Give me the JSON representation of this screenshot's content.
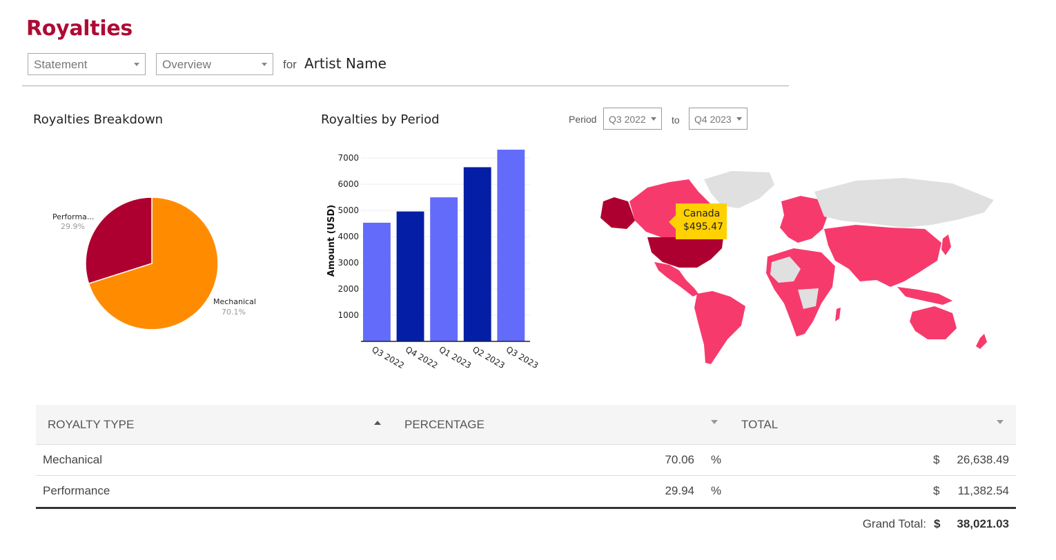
{
  "header": {
    "title": "Royalties",
    "statement_select": "Statement",
    "view_select": "Overview",
    "for_label": "for",
    "artist_name": "Artist Name"
  },
  "breakdown": {
    "title": "Royalties Breakdown",
    "slices": [
      {
        "label": "Mechanical",
        "pct_label": "70.1%",
        "value": 70.1,
        "color": "#ff8c00"
      },
      {
        "label": "Performa...",
        "pct_label": "29.9%",
        "value": 29.9,
        "color": "#ae0030"
      }
    ]
  },
  "period_chart": {
    "title": "Royalties by Period"
  },
  "period_filter": {
    "label": "Period",
    "from": "Q3 2022",
    "to_label": "to",
    "to": "Q4 2023"
  },
  "chart_data": [
    {
      "type": "pie",
      "title": "Royalties Breakdown",
      "categories": [
        "Mechanical",
        "Performa..."
      ],
      "values": [
        70.1,
        29.9
      ]
    },
    {
      "type": "bar",
      "title": "Royalties by Period",
      "categories": [
        "Q3 2022",
        "Q4 2022",
        "Q1 2023",
        "Q2 2023",
        "Q3 2023"
      ],
      "values": [
        4530,
        4960,
        5500,
        6650,
        7320
      ],
      "colors": [
        "#636cfa",
        "#041ea6",
        "#636cfa",
        "#041ea6",
        "#636cfa"
      ],
      "ylabel": "Amount (USD)",
      "xlabel": "",
      "yticks": [
        1000,
        2000,
        3000,
        4000,
        5000,
        6000,
        7000
      ],
      "ylim": [
        0,
        7320
      ],
      "grid": true
    }
  ],
  "map": {
    "tooltip_country": "Canada",
    "tooltip_value": "$495.47",
    "colors": {
      "earning": "#f73a6c",
      "highlight": "#ae0030",
      "none": "#e0e0e0"
    }
  },
  "table": {
    "columns": [
      "ROYALTY TYPE",
      "PERCENTAGE",
      "TOTAL"
    ],
    "rows": [
      {
        "type": "Mechanical",
        "percentage": "70.06",
        "pct_sign": "%",
        "currency": "$",
        "total": "26,638.49"
      },
      {
        "type": "Performance",
        "percentage": "29.94",
        "pct_sign": "%",
        "currency": "$",
        "total": "11,382.54"
      }
    ],
    "grand_total_label": "Grand Total:",
    "grand_total_currency": "$",
    "grand_total": "38,021.03"
  }
}
